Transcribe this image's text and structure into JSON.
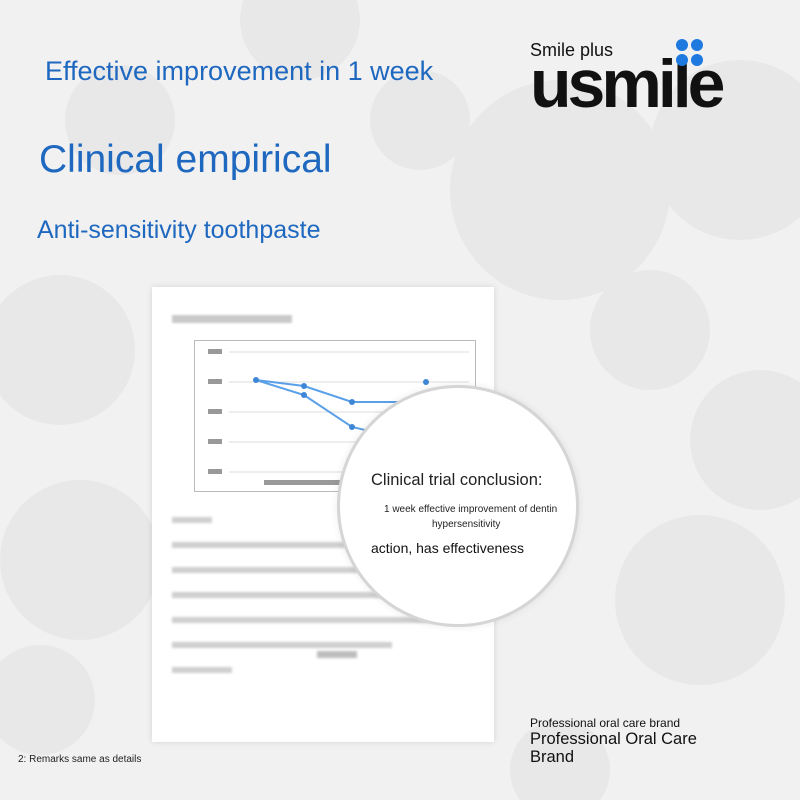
{
  "header": {
    "tagline": "Effective improvement in 1 week",
    "title": "Clinical empirical",
    "subtitle": "Anti-sensitivity toothpaste"
  },
  "logo": {
    "sub_text": "Smile plus",
    "word": "usmile",
    "dot_color": "#1f7ae0"
  },
  "magnifier": {
    "title": "Clinical trial conclusion:",
    "line1": "1 week effective improvement of dentin",
    "line2": "hypersensitivity",
    "line3": "action, has effectiveness"
  },
  "brand": {
    "small": "Professional oral care brand",
    "large": "Professional Oral Care Brand"
  },
  "footnote": {
    "remarks": "2: Remarks same as details"
  },
  "colors": {
    "accent": "#1f68c0",
    "chart_line": "#5aa0e8"
  }
}
